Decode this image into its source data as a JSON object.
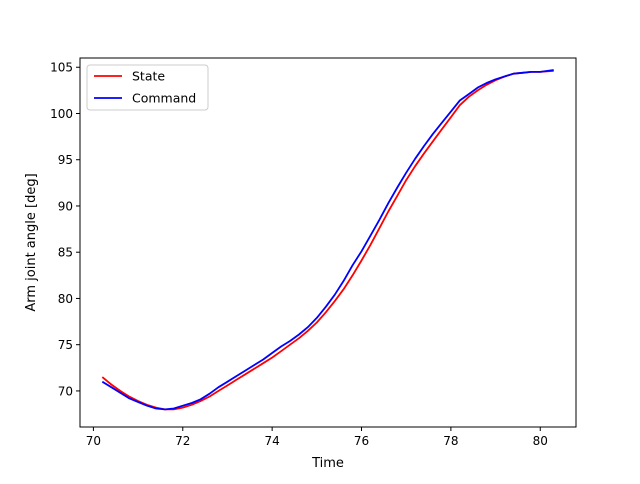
{
  "chart_data": {
    "type": "line",
    "title": "",
    "xlabel": "Time",
    "ylabel": "Arm joint angle [deg]",
    "xlim": [
      69.7,
      80.8
    ],
    "ylim": [
      66.1,
      106.0
    ],
    "xticks": [
      70,
      72,
      74,
      76,
      78,
      80
    ],
    "yticks": [
      70,
      75,
      80,
      85,
      90,
      95,
      100,
      105
    ],
    "grid": false,
    "legend": "top-left",
    "series": [
      {
        "name": "State",
        "color": "#ff0000",
        "x": [
          70.2,
          70.4,
          70.6,
          70.8,
          71.0,
          71.2,
          71.4,
          71.6,
          71.8,
          72.0,
          72.2,
          72.4,
          72.6,
          72.8,
          73.0,
          73.2,
          73.4,
          73.6,
          73.8,
          74.0,
          74.2,
          74.4,
          74.6,
          74.8,
          75.0,
          75.2,
          75.4,
          75.6,
          75.8,
          76.0,
          76.2,
          76.4,
          76.6,
          76.8,
          77.0,
          77.2,
          77.4,
          77.6,
          77.8,
          78.0,
          78.2,
          78.4,
          78.6,
          78.8,
          79.0,
          79.2,
          79.4,
          79.6,
          79.8,
          80.0,
          80.3
        ],
        "values": [
          71.5,
          70.7,
          70.0,
          69.4,
          68.9,
          68.5,
          68.2,
          68.0,
          68.0,
          68.2,
          68.5,
          68.9,
          69.4,
          70.0,
          70.6,
          71.2,
          71.8,
          72.4,
          73.0,
          73.6,
          74.3,
          75.0,
          75.7,
          76.5,
          77.4,
          78.5,
          79.7,
          81.0,
          82.5,
          84.1,
          85.8,
          87.6,
          89.4,
          91.1,
          92.8,
          94.3,
          95.7,
          97.0,
          98.3,
          99.6,
          100.9,
          101.8,
          102.5,
          103.1,
          103.6,
          104.0,
          104.3,
          104.4,
          104.5,
          104.5,
          104.6
        ]
      },
      {
        "name": "Command",
        "color": "#0000ff",
        "x": [
          70.2,
          70.4,
          70.6,
          70.8,
          71.0,
          71.2,
          71.4,
          71.6,
          71.8,
          72.0,
          72.2,
          72.4,
          72.6,
          72.8,
          73.0,
          73.2,
          73.4,
          73.6,
          73.8,
          74.0,
          74.2,
          74.4,
          74.6,
          74.8,
          75.0,
          75.2,
          75.4,
          75.6,
          75.8,
          76.0,
          76.2,
          76.4,
          76.6,
          76.8,
          77.0,
          77.2,
          77.4,
          77.6,
          77.8,
          78.0,
          78.2,
          78.4,
          78.6,
          78.8,
          79.0,
          79.2,
          79.4,
          79.6,
          79.8,
          80.0,
          80.3
        ],
        "values": [
          71.0,
          70.4,
          69.8,
          69.2,
          68.8,
          68.4,
          68.1,
          68.0,
          68.1,
          68.4,
          68.7,
          69.1,
          69.7,
          70.4,
          71.0,
          71.6,
          72.2,
          72.8,
          73.4,
          74.1,
          74.8,
          75.4,
          76.1,
          76.9,
          77.9,
          79.1,
          80.4,
          81.9,
          83.6,
          85.1,
          86.8,
          88.5,
          90.3,
          92.0,
          93.6,
          95.1,
          96.5,
          97.8,
          99.0,
          100.2,
          101.4,
          102.1,
          102.8,
          103.3,
          103.7,
          104.0,
          104.3,
          104.4,
          104.5,
          104.5,
          104.7
        ]
      }
    ]
  }
}
